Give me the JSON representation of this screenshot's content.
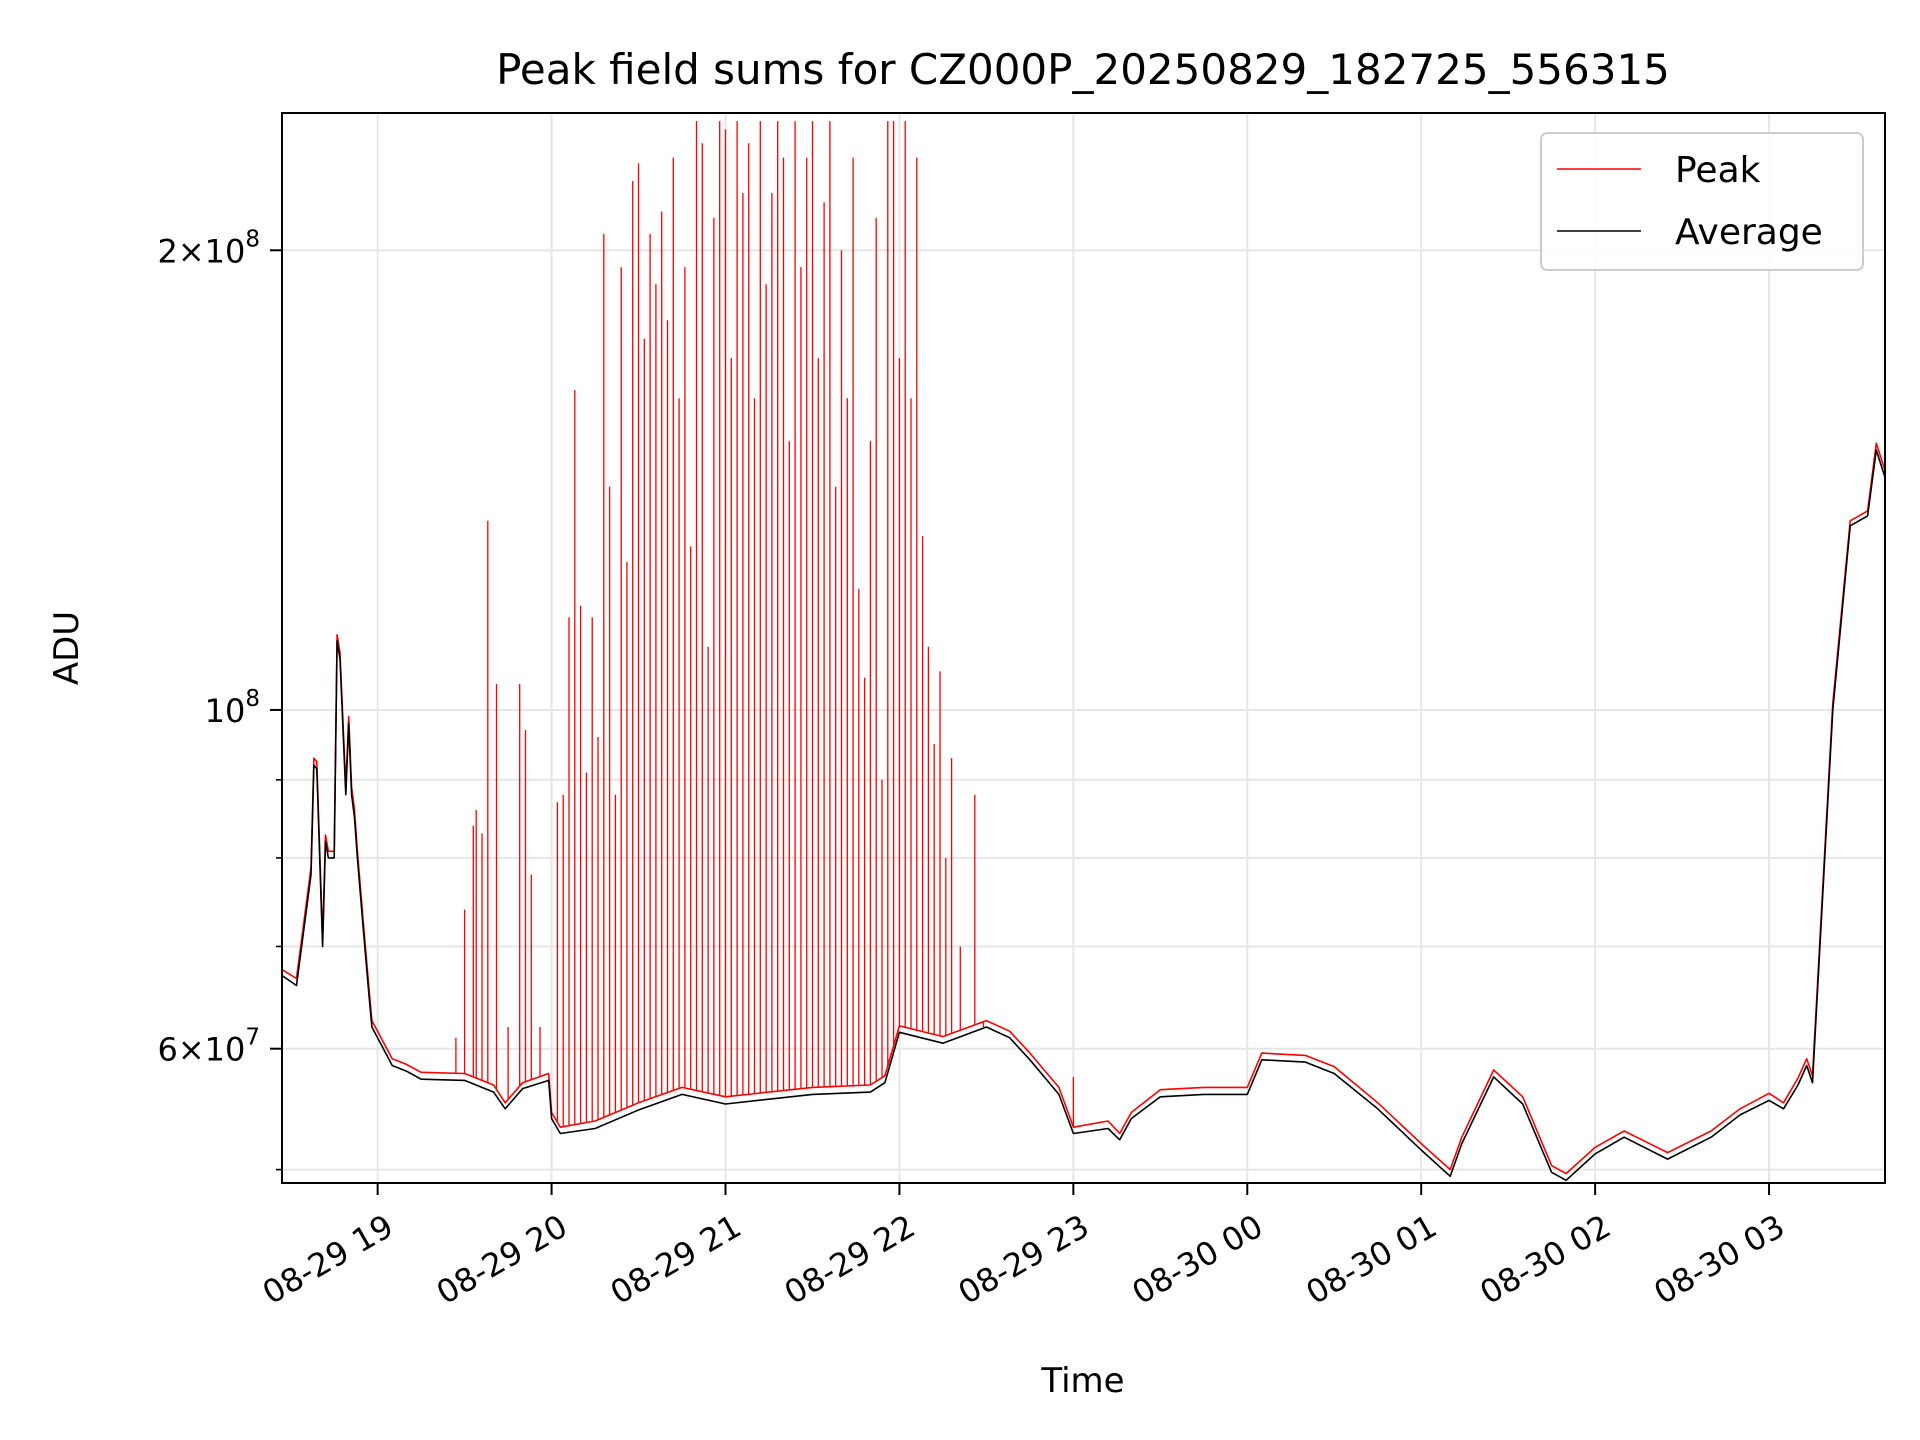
{
  "chart_data": {
    "type": "line",
    "title": "Peak field sums for CZ000P_20250829_182725_556315",
    "xlabel": "Time",
    "ylabel": "ADU",
    "y_scale": "log",
    "xlim": [
      "2025-08-29 18:27",
      "2025-08-30 03:40"
    ],
    "ylim": [
      49000000,
      246000000
    ],
    "grid": true,
    "legend_position": "top-right",
    "x_ticks": [
      {
        "t": "2025-08-29 19:00",
        "label": "08-29 19"
      },
      {
        "t": "2025-08-29 20:00",
        "label": "08-29 20"
      },
      {
        "t": "2025-08-29 21:00",
        "label": "08-29 21"
      },
      {
        "t": "2025-08-29 22:00",
        "label": "08-29 22"
      },
      {
        "t": "2025-08-29 23:00",
        "label": "08-29 23"
      },
      {
        "t": "2025-08-30 00:00",
        "label": "08-30 00"
      },
      {
        "t": "2025-08-30 01:00",
        "label": "08-30 01"
      },
      {
        "t": "2025-08-30 02:00",
        "label": "08-30 02"
      },
      {
        "t": "2025-08-30 03:00",
        "label": "08-30 03"
      }
    ],
    "y_major_ticks": [
      {
        "value": 60000000,
        "mantissa": "6",
        "exponent": "7"
      },
      {
        "value": 100000000,
        "mantissa": "",
        "exponent": "8"
      },
      {
        "value": 200000000,
        "mantissa": "2",
        "exponent": "8"
      }
    ],
    "y_minor_ticks": [
      50000000,
      70000000,
      80000000,
      90000000
    ],
    "series": [
      {
        "name": "Average",
        "color": "#000000",
        "x": [
          "2025-08-29 18:27",
          "2025-08-29 18:32",
          "2025-08-29 18:37",
          "2025-08-29 18:38",
          "2025-08-29 18:39",
          "2025-08-29 18:41",
          "2025-08-29 18:42",
          "2025-08-29 18:43",
          "2025-08-29 18:45",
          "2025-08-29 18:46",
          "2025-08-29 18:47",
          "2025-08-29 18:49",
          "2025-08-29 18:50",
          "2025-08-29 18:51",
          "2025-08-29 18:52",
          "2025-08-29 18:53",
          "2025-08-29 18:55",
          "2025-08-29 18:57",
          "2025-08-29 18:58",
          "2025-08-29 19:05",
          "2025-08-29 19:10",
          "2025-08-29 19:15",
          "2025-08-29 19:30",
          "2025-08-29 19:40",
          "2025-08-29 19:44",
          "2025-08-29 19:50",
          "2025-08-29 19:59",
          "2025-08-29 20:00",
          "2025-08-29 20:03",
          "2025-08-29 20:15",
          "2025-08-29 20:30",
          "2025-08-29 20:45",
          "2025-08-29 21:00",
          "2025-08-29 21:30",
          "2025-08-29 21:50",
          "2025-08-29 21:55",
          "2025-08-29 22:00",
          "2025-08-29 22:15",
          "2025-08-29 22:30",
          "2025-08-29 22:38",
          "2025-08-29 22:45",
          "2025-08-29 22:55",
          "2025-08-29 23:00",
          "2025-08-29 23:12",
          "2025-08-29 23:16",
          "2025-08-29 23:20",
          "2025-08-29 23:30",
          "2025-08-29 23:45",
          "2025-08-30 00:00",
          "2025-08-30 00:05",
          "2025-08-30 00:20",
          "2025-08-30 00:30",
          "2025-08-30 00:45",
          "2025-08-30 01:00",
          "2025-08-30 01:10",
          "2025-08-30 01:14",
          "2025-08-30 01:25",
          "2025-08-30 01:35",
          "2025-08-30 01:45",
          "2025-08-30 01:50",
          "2025-08-30 02:00",
          "2025-08-30 02:10",
          "2025-08-30 02:25",
          "2025-08-30 02:40",
          "2025-08-30 02:50",
          "2025-08-30 03:00",
          "2025-08-30 03:05",
          "2025-08-30 03:10",
          "2025-08-30 03:13",
          "2025-08-30 03:15",
          "2025-08-30 03:22",
          "2025-08-30 03:28",
          "2025-08-30 03:34",
          "2025-08-30 03:37",
          "2025-08-30 03:40"
        ],
        "y": [
          67000000,
          66000000,
          78000000,
          92000000,
          91500000,
          70000000,
          82000000,
          80000000,
          80000000,
          111000000,
          108000000,
          88000000,
          98000000,
          88000000,
          85000000,
          80000000,
          72000000,
          65000000,
          62000000,
          58500000,
          58000000,
          57300000,
          57200000,
          56200000,
          54800000,
          56500000,
          57200000,
          54000000,
          52800000,
          53200000,
          54700000,
          56000000,
          55200000,
          56000000,
          56200000,
          57000000,
          61500000,
          60500000,
          62000000,
          61000000,
          59000000,
          56000000,
          52800000,
          53200000,
          52300000,
          54000000,
          55800000,
          56000000,
          56000000,
          59000000,
          58800000,
          57800000,
          54800000,
          51500000,
          49500000,
          52000000,
          57500000,
          55200000,
          49800000,
          49200000,
          51200000,
          52500000,
          50800000,
          52500000,
          54300000,
          55500000,
          54800000,
          56800000,
          58500000,
          57000000,
          100000000,
          132000000,
          134000000,
          148000000,
          142000000
        ]
      },
      {
        "name": "Peak",
        "color": "#ff0000",
        "x": [
          "2025-08-29 18:27",
          "2025-08-29 18:32",
          "2025-08-29 18:37",
          "2025-08-29 18:38",
          "2025-08-29 18:39",
          "2025-08-29 18:41",
          "2025-08-29 18:42",
          "2025-08-29 18:43",
          "2025-08-29 18:45",
          "2025-08-29 18:46",
          "2025-08-29 18:47",
          "2025-08-29 18:49",
          "2025-08-29 18:50",
          "2025-08-29 18:51",
          "2025-08-29 18:52",
          "2025-08-29 18:53",
          "2025-08-29 18:55",
          "2025-08-29 18:57",
          "2025-08-29 18:58",
          "2025-08-29 19:05",
          "2025-08-29 19:10",
          "2025-08-29 19:15",
          "2025-08-29 19:30",
          "2025-08-29 19:40",
          "2025-08-29 19:44",
          "2025-08-29 19:50",
          "2025-08-29 19:59",
          "2025-08-29 20:00",
          "2025-08-29 20:03",
          "2025-08-29 20:15",
          "2025-08-29 20:30",
          "2025-08-29 20:45",
          "2025-08-29 21:00",
          "2025-08-29 21:30",
          "2025-08-29 21:50",
          "2025-08-29 21:55",
          "2025-08-29 22:00",
          "2025-08-29 22:15",
          "2025-08-29 22:30",
          "2025-08-29 22:38",
          "2025-08-29 22:45",
          "2025-08-29 22:55",
          "2025-08-29 23:00",
          "2025-08-29 23:12",
          "2025-08-29 23:16",
          "2025-08-29 23:20",
          "2025-08-29 23:30",
          "2025-08-29 23:45",
          "2025-08-30 00:00",
          "2025-08-30 00:05",
          "2025-08-30 00:20",
          "2025-08-30 00:30",
          "2025-08-30 00:45",
          "2025-08-30 01:00",
          "2025-08-30 01:10",
          "2025-08-30 01:14",
          "2025-08-30 01:25",
          "2025-08-30 01:35",
          "2025-08-30 01:45",
          "2025-08-30 01:50",
          "2025-08-30 02:00",
          "2025-08-30 02:10",
          "2025-08-30 02:25",
          "2025-08-30 02:40",
          "2025-08-30 02:50",
          "2025-08-30 03:00",
          "2025-08-30 03:05",
          "2025-08-30 03:10",
          "2025-08-30 03:13",
          "2025-08-30 03:15",
          "2025-08-30 03:22",
          "2025-08-30 03:28",
          "2025-08-30 03:34",
          "2025-08-30 03:37",
          "2025-08-30 03:40"
        ],
        "y": [
          67600000,
          66700000,
          78800000,
          93000000,
          92500000,
          70700000,
          82800000,
          80800000,
          80800000,
          112000000,
          109000000,
          89000000,
          99000000,
          89000000,
          86000000,
          80800000,
          72700000,
          65700000,
          62600000,
          59100000,
          58600000,
          57900000,
          57800000,
          56800000,
          55300000,
          57000000,
          57800000,
          54500000,
          53300000,
          53800000,
          55300000,
          56600000,
          55800000,
          56600000,
          56800000,
          57600000,
          62100000,
          61100000,
          62600000,
          61600000,
          59600000,
          56600000,
          53300000,
          53800000,
          52800000,
          54500000,
          56400000,
          56600000,
          56600000,
          59600000,
          59400000,
          58400000,
          55300000,
          52000000,
          50000000,
          52500000,
          58100000,
          55800000,
          50300000,
          49700000,
          51700000,
          53000000,
          51300000,
          53000000,
          54800000,
          56100000,
          55300000,
          57400000,
          59100000,
          57600000,
          101000000,
          133000000,
          135000000,
          149500000,
          143500000
        ],
        "spikes": [
          [
            "2025-08-29 19:27",
            61000000
          ],
          [
            "2025-08-29 19:30",
            74000000
          ],
          [
            "2025-08-29 19:33",
            84000000
          ],
          [
            "2025-08-29 19:34",
            86000000
          ],
          [
            "2025-08-29 19:36",
            83000000
          ],
          [
            "2025-08-29 19:38",
            133000000
          ],
          [
            "2025-08-29 19:41",
            104000000
          ],
          [
            "2025-08-29 19:45",
            62000000
          ],
          [
            "2025-08-29 19:49",
            104000000
          ],
          [
            "2025-08-29 19:51",
            97000000
          ],
          [
            "2025-08-29 19:53",
            78000000
          ],
          [
            "2025-08-29 19:56",
            62000000
          ],
          [
            "2025-08-29 20:02",
            87000000
          ],
          [
            "2025-08-29 20:04",
            88000000
          ],
          [
            "2025-08-29 20:06",
            115000000
          ],
          [
            "2025-08-29 20:08",
            162000000
          ],
          [
            "2025-08-29 20:10",
            117000000
          ],
          [
            "2025-08-29 20:12",
            91000000
          ],
          [
            "2025-08-29 20:14",
            115000000
          ],
          [
            "2025-08-29 20:16",
            96000000
          ],
          [
            "2025-08-29 20:18",
            205000000
          ],
          [
            "2025-08-29 20:20",
            140000000
          ],
          [
            "2025-08-29 20:22",
            88000000
          ],
          [
            "2025-08-29 20:24",
            195000000
          ],
          [
            "2025-08-29 20:26",
            125000000
          ],
          [
            "2025-08-29 20:28",
            222000000
          ],
          [
            "2025-08-29 20:30",
            228000000
          ],
          [
            "2025-08-29 20:32",
            175000000
          ],
          [
            "2025-08-29 20:34",
            205000000
          ],
          [
            "2025-08-29 20:36",
            190000000
          ],
          [
            "2025-08-29 20:38",
            212000000
          ],
          [
            "2025-08-29 20:40",
            180000000
          ],
          [
            "2025-08-29 20:42",
            230000000
          ],
          [
            "2025-08-29 20:44",
            160000000
          ],
          [
            "2025-08-29 20:46",
            195000000
          ],
          [
            "2025-08-29 20:48",
            128000000
          ],
          [
            "2025-08-29 20:50",
            243000000
          ],
          [
            "2025-08-29 20:52",
            235000000
          ],
          [
            "2025-08-29 20:54",
            110000000
          ],
          [
            "2025-08-29 20:56",
            210000000
          ],
          [
            "2025-08-29 20:58",
            243000000
          ],
          [
            "2025-08-29 21:00",
            240000000
          ],
          [
            "2025-08-29 21:02",
            170000000
          ],
          [
            "2025-08-29 21:04",
            243000000
          ],
          [
            "2025-08-29 21:06",
            218000000
          ],
          [
            "2025-08-29 21:08",
            235000000
          ],
          [
            "2025-08-29 21:10",
            160000000
          ],
          [
            "2025-08-29 21:12",
            243000000
          ],
          [
            "2025-08-29 21:14",
            190000000
          ],
          [
            "2025-08-29 21:16",
            218000000
          ],
          [
            "2025-08-29 21:18",
            243000000
          ],
          [
            "2025-08-29 21:20",
            230000000
          ],
          [
            "2025-08-29 21:22",
            150000000
          ],
          [
            "2025-08-29 21:24",
            243000000
          ],
          [
            "2025-08-29 21:26",
            195000000
          ],
          [
            "2025-08-29 21:28",
            230000000
          ],
          [
            "2025-08-29 21:30",
            243000000
          ],
          [
            "2025-08-29 21:32",
            170000000
          ],
          [
            "2025-08-29 21:34",
            215000000
          ],
          [
            "2025-08-29 21:36",
            243000000
          ],
          [
            "2025-08-29 21:38",
            140000000
          ],
          [
            "2025-08-29 21:40",
            200000000
          ],
          [
            "2025-08-29 21:42",
            160000000
          ],
          [
            "2025-08-29 21:44",
            230000000
          ],
          [
            "2025-08-29 21:46",
            120000000
          ],
          [
            "2025-08-29 21:48",
            105000000
          ],
          [
            "2025-08-29 21:50",
            150000000
          ],
          [
            "2025-08-29 21:52",
            210000000
          ],
          [
            "2025-08-29 21:54",
            90000000
          ],
          [
            "2025-08-29 21:56",
            243000000
          ],
          [
            "2025-08-29 21:58",
            243000000
          ],
          [
            "2025-08-29 22:00",
            170000000
          ],
          [
            "2025-08-29 22:02",
            243000000
          ],
          [
            "2025-08-29 22:04",
            160000000
          ],
          [
            "2025-08-29 22:06",
            230000000
          ],
          [
            "2025-08-29 22:08",
            130000000
          ],
          [
            "2025-08-29 22:10",
            110000000
          ],
          [
            "2025-08-29 22:12",
            95000000
          ],
          [
            "2025-08-29 22:14",
            106000000
          ],
          [
            "2025-08-29 22:16",
            80000000
          ],
          [
            "2025-08-29 22:18",
            93000000
          ],
          [
            "2025-08-29 22:21",
            70000000
          ],
          [
            "2025-08-29 22:26",
            88000000
          ],
          [
            "2025-08-29 22:29",
            62000000
          ],
          [
            "2025-08-29 23:00",
            57500000
          ]
        ]
      }
    ]
  }
}
